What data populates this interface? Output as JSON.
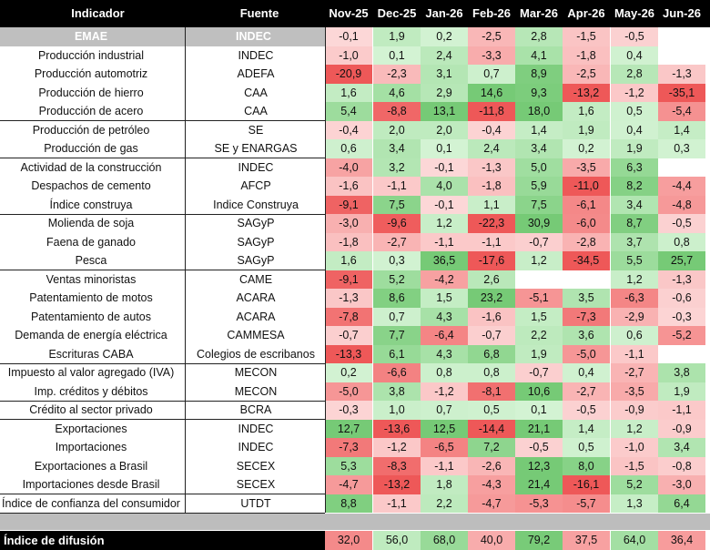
{
  "headers": {
    "indicator": "Indicador",
    "source": "Fuente",
    "months": [
      "Nov-25",
      "Dec-25",
      "Jan-26",
      "Feb-26",
      "Mar-26",
      "Apr-26",
      "May-26",
      "Jun-26"
    ]
  },
  "chart_data": {
    "type": "heatmap",
    "columns": [
      "Nov-25",
      "Dec-25",
      "Jan-26",
      "Feb-26",
      "Mar-26",
      "Apr-26",
      "May-26",
      "Jun-26"
    ],
    "rows": [
      {
        "indicator": "EMAE",
        "source": "INDEC",
        "values": [
          "-0,1",
          "1,9",
          "0,2",
          "-2,5",
          "2,8",
          "-1,5",
          "-0,5",
          ""
        ]
      },
      {
        "indicator": "Producción industrial",
        "source": "INDEC",
        "values": [
          "-1,0",
          "0,1",
          "2,4",
          "-3,3",
          "4,1",
          "-1,8",
          "0,4",
          ""
        ]
      },
      {
        "indicator": "Producción automotriz",
        "source": "ADEFA",
        "values": [
          "-20,9",
          "-2,3",
          "3,1",
          "0,7",
          "8,9",
          "-2,5",
          "2,8",
          "-1,3"
        ]
      },
      {
        "indicator": "Producción de hierro",
        "source": "CAA",
        "values": [
          "1,6",
          "4,6",
          "2,9",
          "14,6",
          "9,3",
          "-13,2",
          "-1,2",
          "-35,1"
        ]
      },
      {
        "indicator": "Producción de acero",
        "source": "CAA",
        "values": [
          "5,4",
          "-8,8",
          "13,1",
          "-11,8",
          "18,0",
          "1,6",
          "0,5",
          "-5,4"
        ]
      },
      {
        "indicator": "Producción de petróleo",
        "source": "SE",
        "values": [
          "-0,4",
          "2,0",
          "2,0",
          "-0,4",
          "1,4",
          "1,9",
          "0,4",
          "1,4"
        ]
      },
      {
        "indicator": "Producción de gas",
        "source": "SE y ENARGAS",
        "values": [
          "0,6",
          "3,4",
          "0,1",
          "2,4",
          "3,4",
          "0,2",
          "1,9",
          "0,3"
        ]
      },
      {
        "indicator": "Actividad de la construcción",
        "source": "INDEC",
        "values": [
          "-4,0",
          "3,2",
          "-0,1",
          "-1,3",
          "5,0",
          "-3,5",
          "6,3",
          ""
        ]
      },
      {
        "indicator": "Despachos de cemento",
        "source": "AFCP",
        "values": [
          "-1,6",
          "-1,1",
          "4,0",
          "-1,8",
          "5,9",
          "-11,0",
          "8,2",
          "-4,4"
        ]
      },
      {
        "indicator": "Índice construya",
        "source": "Indice Construya",
        "values": [
          "-9,1",
          "7,5",
          "-0,1",
          "1,1",
          "7,5",
          "-6,1",
          "3,4",
          "-4,8"
        ]
      },
      {
        "indicator": "Molienda de soja",
        "source": "SAGyP",
        "values": [
          "-3,0",
          "-9,6",
          "1,2",
          "-22,3",
          "30,9",
          "-6,0",
          "8,7",
          "-0,5"
        ]
      },
      {
        "indicator": "Faena de ganado",
        "source": "SAGyP",
        "values": [
          "-1,8",
          "-2,7",
          "-1,1",
          "-1,1",
          "-0,7",
          "-2,8",
          "3,7",
          "0,8"
        ]
      },
      {
        "indicator": "Pesca",
        "source": "SAGyP",
        "values": [
          "1,6",
          "0,3",
          "36,5",
          "-17,6",
          "1,2",
          "-34,5",
          "5,5",
          "25,7"
        ]
      },
      {
        "indicator": "Ventas minoristas",
        "source": "CAME",
        "values": [
          "-9,1",
          "5,2",
          "-4,2",
          "2,6",
          "",
          "",
          "1,2",
          "-1,3"
        ]
      },
      {
        "indicator": "Patentamiento de motos",
        "source": "ACARA",
        "values": [
          "-1,3",
          "8,6",
          "1,5",
          "23,2",
          "-5,1",
          "3,5",
          "-6,3",
          "-0,6"
        ]
      },
      {
        "indicator": "Patentamiento de autos",
        "source": "ACARA",
        "values": [
          "-7,8",
          "0,7",
          "4,3",
          "-1,6",
          "1,5",
          "-7,3",
          "-2,9",
          "-0,3"
        ]
      },
      {
        "indicator": "Demanda de energía eléctrica",
        "source": "CAMMESA",
        "values": [
          "-0,7",
          "7,7",
          "-6,4",
          "-0,7",
          "2,2",
          "3,6",
          "0,6",
          "-5,2"
        ]
      },
      {
        "indicator": "Escrituras CABA",
        "source": "Colegios de escribanos",
        "values": [
          "-13,3",
          "6,1",
          "4,3",
          "6,8",
          "1,9",
          "-5,0",
          "-1,1",
          ""
        ]
      },
      {
        "indicator": "Impuesto al valor agregado (IVA)",
        "source": "MECON",
        "values": [
          "0,2",
          "-6,6",
          "0,8",
          "0,8",
          "-0,7",
          "0,4",
          "-2,7",
          "3,8"
        ]
      },
      {
        "indicator": "Imp. créditos y débitos",
        "source": "MECON",
        "values": [
          "-5,0",
          "3,8",
          "-1,2",
          "-8,1",
          "10,6",
          "-2,7",
          "-3,5",
          "1,9"
        ]
      },
      {
        "indicator": "Crédito al sector privado",
        "source": "BCRA",
        "values": [
          "-0,3",
          "1,0",
          "0,7",
          "0,5",
          "0,1",
          "-0,5",
          "-0,9",
          "-1,1"
        ]
      },
      {
        "indicator": "Exportaciones",
        "source": "INDEC",
        "values": [
          "12,7",
          "-13,6",
          "12,5",
          "-14,4",
          "21,1",
          "1,4",
          "1,2",
          "-0,9"
        ]
      },
      {
        "indicator": "Importaciones",
        "source": "INDEC",
        "values": [
          "-7,3",
          "-1,2",
          "-6,5",
          "7,2",
          "-0,5",
          "0,5",
          "-1,0",
          "3,4"
        ]
      },
      {
        "indicator": "Exportaciones a Brasil",
        "source": "SECEX",
        "values": [
          "5,3",
          "-8,3",
          "-1,1",
          "-2,6",
          "12,3",
          "8,0",
          "-1,5",
          "-0,8"
        ]
      },
      {
        "indicator": "Importaciones desde Brasil",
        "source": "SECEX",
        "values": [
          "-4,7",
          "-13,2",
          "1,8",
          "-4,3",
          "21,4",
          "-16,1",
          "5,2",
          "-3,0"
        ]
      },
      {
        "indicator": "Índice de confianza del consumidor",
        "source": "UTDT",
        "values": [
          "8,8",
          "-1,1",
          "2,2",
          "-4,7",
          "-5,3",
          "-5,7",
          "1,3",
          "6,4"
        ]
      }
    ],
    "footer": {
      "label": "Índice de difusión",
      "values": [
        "32,0",
        "56,0",
        "68,0",
        "40,0",
        "79,2",
        "37,5",
        "64,0",
        "36,4"
      ]
    }
  }
}
